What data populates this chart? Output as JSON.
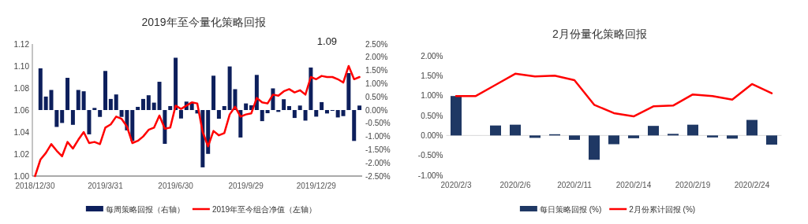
{
  "chart_data": [
    {
      "type": "bar",
      "title": "2019年至今量化策略回报",
      "categories": [
        "2018/12/30",
        null,
        null,
        null,
        null,
        null,
        null,
        null,
        null,
        null,
        null,
        null,
        null,
        "2019/3/31",
        null,
        null,
        null,
        null,
        null,
        null,
        null,
        null,
        null,
        null,
        null,
        null,
        "2019/6/30",
        null,
        null,
        null,
        null,
        null,
        null,
        null,
        null,
        null,
        null,
        null,
        null,
        "2019/9/29",
        null,
        null,
        null,
        null,
        null,
        null,
        null,
        null,
        null,
        null,
        null,
        null,
        "2019/12/29",
        null,
        null,
        null,
        null,
        null,
        null,
        null,
        null
      ],
      "series": [
        {
          "name": "每周策略回报（右轴）",
          "axis": "y2",
          "color": "#0d1f5c",
          "values": [
            null,
            1.58,
            0.51,
            0.76,
            -0.64,
            -0.49,
            1.22,
            -0.56,
            0.76,
            0.71,
            -0.92,
            0.08,
            -0.26,
            1.48,
            0.42,
            0.59,
            -0.26,
            -0.77,
            -1.17,
            0.12,
            0.42,
            0.56,
            0.28,
            1.07,
            -1.28,
            0.15,
            1.98,
            -0.32,
            0.32,
            0.3,
            -0.13,
            -2.17,
            -1.66,
            1.3,
            -0.33,
            0.15,
            1.65,
            0.79,
            -1.04,
            0.25,
            0.18,
            1.33,
            -0.42,
            -0.12,
            0.82,
            -0.07,
            0.41,
            0.15,
            -0.3,
            0.17,
            -0.4,
            1.61,
            -0.25,
            0.3,
            -0.13,
            -0.03,
            -0.28,
            -0.23,
            1.4,
            -1.17,
            0.17
          ]
        },
        {
          "name": "2019年至今组合净值（左轴）",
          "type": "line",
          "color": "#ff0000",
          "values": [
            1.0,
            1.015,
            1.021,
            1.029,
            1.023,
            1.018,
            1.031,
            1.025,
            1.033,
            1.04,
            1.03,
            1.031,
            1.029,
            1.044,
            1.047,
            1.054,
            1.052,
            1.045,
            1.03,
            1.032,
            1.036,
            1.042,
            1.044,
            1.055,
            1.043,
            1.044,
            1.064,
            1.061,
            1.064,
            1.067,
            1.066,
            1.04,
            1.027,
            1.041,
            1.037,
            1.039,
            1.056,
            1.063,
            1.054,
            1.056,
            1.057,
            1.071,
            1.067,
            1.066,
            1.074,
            1.073,
            1.077,
            1.079,
            1.076,
            1.078,
            1.074,
            1.09,
            1.088,
            1.091,
            1.09,
            1.09,
            1.088,
            1.085,
            1.1,
            1.088,
            1.09
          ]
        }
      ],
      "ylim": [
        1.0,
        1.12
      ],
      "yticks": [
        {
          "value": 1.0,
          "label": "1.00"
        },
        {
          "value": 1.02,
          "label": "1.02"
        },
        {
          "value": 1.04,
          "label": "1.04"
        },
        {
          "value": 1.06,
          "label": "1.06"
        },
        {
          "value": 1.08,
          "label": "1.08"
        },
        {
          "value": 1.1,
          "label": "1.10"
        },
        {
          "value": 1.12,
          "label": "1.12"
        }
      ],
      "y2lim": [
        -2.5,
        2.5
      ],
      "y2ticks": [
        {
          "value": -2.5,
          "label": "-2.50%"
        },
        {
          "value": -2.0,
          "label": "-2.00%"
        },
        {
          "value": -1.5,
          "label": "-1.50%"
        },
        {
          "value": -1.0,
          "label": "-1.00%"
        },
        {
          "value": -0.5,
          "label": "-0.50%"
        },
        {
          "value": 0,
          "label": "0.00%"
        },
        {
          "value": 0.5,
          "label": "0.50%"
        },
        {
          "value": 1.0,
          "label": "1.00%"
        },
        {
          "value": 1.5,
          "label": "1.50%"
        },
        {
          "value": 2.0,
          "label": "2.00%"
        },
        {
          "value": 2.5,
          "label": "2.50%"
        }
      ],
      "annotations": [
        "1.09"
      ],
      "legend": "bottom"
    },
    {
      "type": "bar",
      "title": "2月份量化策略回报",
      "categories": [
        "2020/2/3",
        null,
        null,
        "2020/2/6",
        null,
        null,
        "2020/2/11",
        null,
        null,
        "2020/2/14",
        null,
        null,
        "2020/2/19",
        null,
        null,
        "2020/2/24",
        null
      ],
      "series": [
        {
          "name": "每日策略回报 (%)",
          "color": "#1f3864",
          "values": [
            0.99,
            0,
            0.25,
            0.27,
            -0.06,
            0.03,
            -0.11,
            -0.61,
            -0.22,
            -0.07,
            0.24,
            0.04,
            0.27,
            -0.05,
            -0.08,
            0.39,
            -0.23
          ]
        },
        {
          "name": "2月份累计回报 (%)",
          "type": "line",
          "color": "#ff0000",
          "values": [
            0.99,
            0.99,
            1.27,
            1.55,
            1.48,
            1.5,
            1.39,
            0.77,
            0.56,
            0.48,
            0.73,
            0.75,
            1.03,
            0.99,
            0.9,
            1.29,
            1.06
          ]
        }
      ],
      "ylim": [
        -1.0,
        2.0
      ],
      "yticks": [
        {
          "value": -1.0,
          "label": "-1.00%"
        },
        {
          "value": -0.5,
          "label": "-0.50%"
        },
        {
          "value": 0,
          "label": "0.00%"
        },
        {
          "value": 0.5,
          "label": "0.50%"
        },
        {
          "value": 1.0,
          "label": "1.00%"
        },
        {
          "value": 1.5,
          "label": "1.50%"
        },
        {
          "value": 2.0,
          "label": "2.00%"
        }
      ],
      "legend": "bottom"
    }
  ]
}
